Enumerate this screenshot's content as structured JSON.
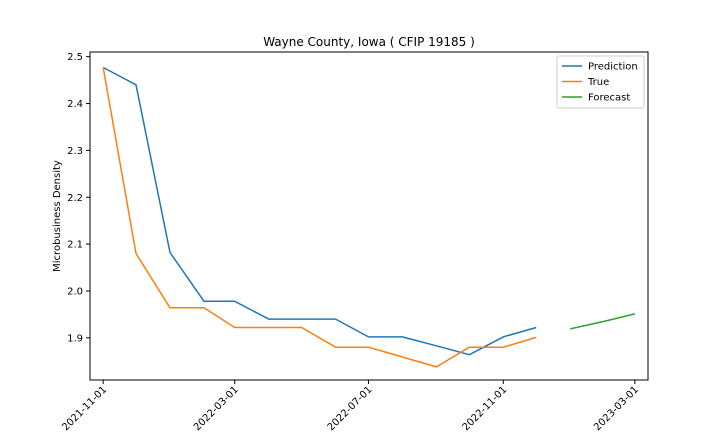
{
  "chart_data": {
    "type": "line",
    "title": "Wayne County, Iowa ( CFIP 19185 )",
    "xlabel": "",
    "ylabel": "Microbusiness Density",
    "ylim": [
      1.81,
      2.51
    ],
    "xlim": [
      "2021-10-20",
      "2023-03-13"
    ],
    "yticks": [
      1.9,
      2.0,
      2.1,
      2.2,
      2.3,
      2.4,
      2.5
    ],
    "ytick_labels": [
      "1.9",
      "2.0",
      "2.1",
      "2.2",
      "2.3",
      "2.4",
      "2.5"
    ],
    "xticks": [
      "2021-11-01",
      "2022-03-01",
      "2022-07-01",
      "2022-11-01",
      "2023-03-01"
    ],
    "legend_position": "top-right",
    "series": [
      {
        "name": "Prediction",
        "color": "#1f77b4",
        "x": [
          "2021-11-01",
          "2021-12-01",
          "2022-01-01",
          "2022-02-01",
          "2022-03-01",
          "2022-04-01",
          "2022-05-01",
          "2022-06-01",
          "2022-07-01",
          "2022-08-01",
          "2022-09-01",
          "2022-10-01",
          "2022-11-01",
          "2022-12-01"
        ],
        "values": [
          2.477,
          2.44,
          2.082,
          1.978,
          1.978,
          1.94,
          1.94,
          1.94,
          1.902,
          1.902,
          1.883,
          1.864,
          1.902,
          1.922
        ]
      },
      {
        "name": "True",
        "color": "#ff7f0e",
        "x": [
          "2021-11-01",
          "2021-12-01",
          "2022-01-01",
          "2022-02-01",
          "2022-03-01",
          "2022-04-01",
          "2022-05-01",
          "2022-06-01",
          "2022-07-01",
          "2022-08-01",
          "2022-09-01",
          "2022-10-01",
          "2022-11-01",
          "2022-12-01"
        ],
        "values": [
          2.477,
          2.08,
          1.964,
          1.964,
          1.922,
          1.922,
          1.922,
          1.88,
          1.88,
          1.859,
          1.838,
          1.88,
          1.88,
          1.901
        ]
      },
      {
        "name": "Forecast",
        "color": "#2ca02c",
        "x": [
          "2023-01-01",
          "2023-02-01",
          "2023-03-01"
        ],
        "values": [
          1.919,
          1.935,
          1.951
        ]
      }
    ]
  }
}
